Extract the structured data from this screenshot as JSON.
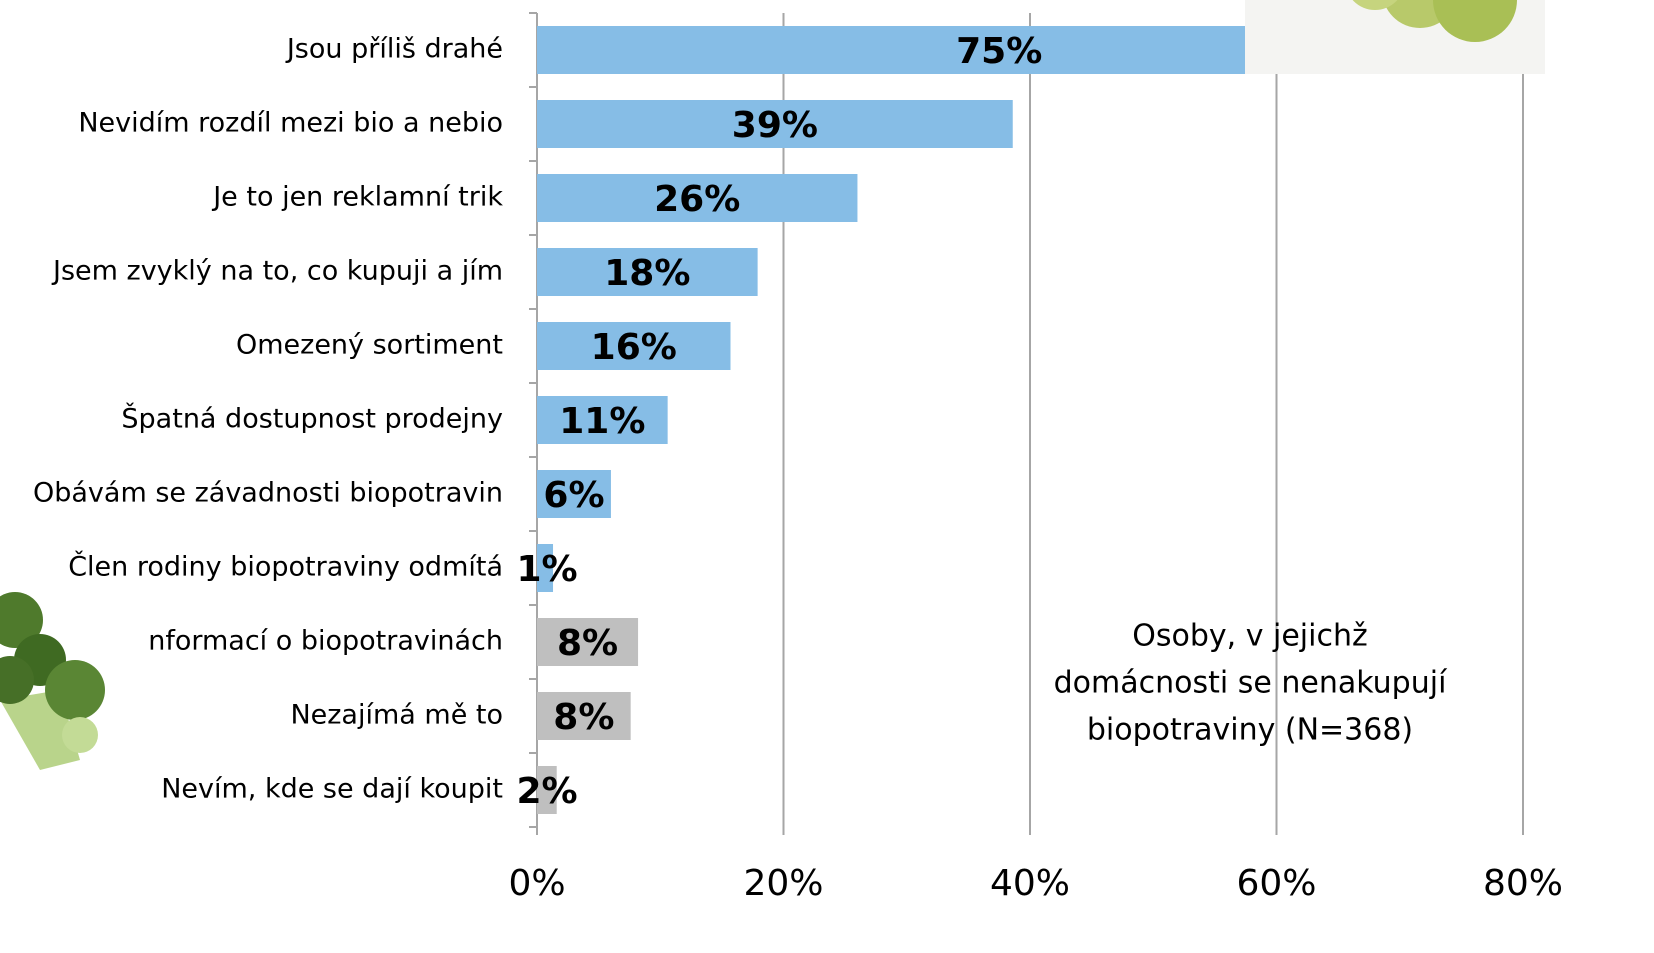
{
  "chart_data": {
    "type": "barh",
    "categories": [
      "Jsou příliš drahé",
      "Nevidím rozdíl mezi bio a nebio",
      "Je to jen reklamní trik",
      "Jsem zvyklý na to, co kupuji a jím",
      "Omezený sortiment",
      "Špatná dostupnost prodejny",
      "Obávám se závadnosti biopotravin",
      "Člen rodiny biopotraviny odmítá",
      "nformací o biopotravinách",
      "Nezajímá mě to",
      "Nevím, kde se dají koupit"
    ],
    "values": [
      75,
      38.6,
      26,
      17.9,
      15.7,
      10.6,
      6,
      1.3,
      8.2,
      7.6,
      1.6
    ],
    "value_labels": [
      "75%",
      "39%",
      "26%",
      "18%",
      "16%",
      "11%",
      "6%",
      "1%",
      "8%",
      "8%",
      "2%"
    ],
    "colors": [
      "#86bde6",
      "#86bde6",
      "#86bde6",
      "#86bde6",
      "#86bde6",
      "#86bde6",
      "#86bde6",
      "#86bde6",
      "#bfbfbf",
      "#bfbfbf",
      "#bfbfbf"
    ],
    "xlim": [
      0,
      80
    ],
    "xticks": [
      {
        "value": 0,
        "label": "0%"
      },
      {
        "value": 20,
        "label": "20%"
      },
      {
        "value": 40,
        "label": "40%"
      },
      {
        "value": 60,
        "label": "60%"
      },
      {
        "value": 80,
        "label": "80%"
      }
    ],
    "grid": true,
    "annotation": [
      "Osoby, v jejichž",
      "domácnosti se nenakupují",
      "biopotraviny (N=368)"
    ]
  }
}
